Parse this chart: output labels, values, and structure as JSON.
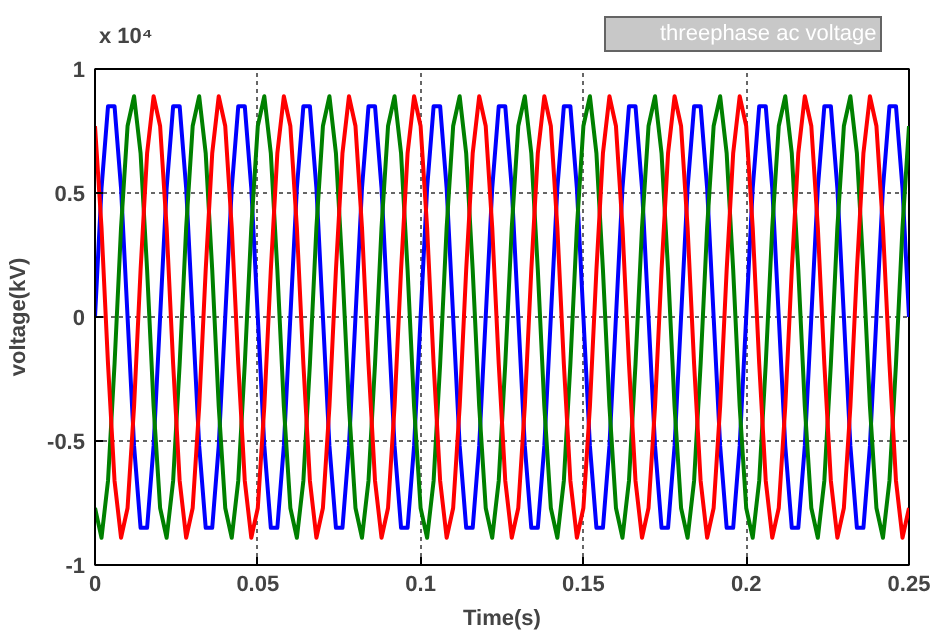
{
  "chart_data": {
    "type": "line",
    "xlabel": "Time(s)",
    "ylabel": "voltage(kV)",
    "annotations": [
      "x 10⁴"
    ],
    "x": [
      0,
      0.002,
      0.004,
      0.006,
      0.008,
      0.01,
      0.012,
      0.014,
      0.016,
      0.018,
      0.02,
      0.022,
      0.024,
      0.026,
      0.028,
      0.03,
      0.032,
      0.034,
      0.036,
      0.038,
      0.04,
      0.042,
      0.044,
      0.046,
      0.048,
      0.05,
      0.052,
      0.054,
      0.056,
      0.058,
      0.06,
      0.062,
      0.064,
      0.066,
      0.068,
      0.07,
      0.072,
      0.074,
      0.076,
      0.078,
      0.08,
      0.082,
      0.084,
      0.086,
      0.088,
      0.09,
      0.092,
      0.094,
      0.096,
      0.098,
      0.1,
      0.102,
      0.104,
      0.106,
      0.108,
      0.11,
      0.112,
      0.114,
      0.116,
      0.118,
      0.12,
      0.122,
      0.124,
      0.126,
      0.128,
      0.13,
      0.132,
      0.134,
      0.136,
      0.138,
      0.14,
      0.142,
      0.144,
      0.146,
      0.148,
      0.15,
      0.152,
      0.154,
      0.156,
      0.158,
      0.16,
      0.162,
      0.164,
      0.166,
      0.168,
      0.17,
      0.172,
      0.174,
      0.176,
      0.178,
      0.18,
      0.182,
      0.184,
      0.186,
      0.188,
      0.19,
      0.192,
      0.194,
      0.196,
      0.198,
      0.2,
      0.202,
      0.204,
      0.206,
      0.208,
      0.21,
      0.212,
      0.214,
      0.216,
      0.218,
      0.22,
      0.222,
      0.224,
      0.226,
      0.228,
      0.23,
      0.232,
      0.234,
      0.236,
      0.238,
      0.24,
      0.242,
      0.244,
      0.246,
      0.248,
      0.25
    ],
    "series": [
      {
        "color": "#0000ff",
        "values": [
          0,
          0.52,
          0.85,
          0.85,
          0.52,
          0,
          -0.52,
          -0.85,
          -0.85,
          -0.52,
          0,
          0.52,
          0.85,
          0.85,
          0.52,
          0,
          -0.52,
          -0.85,
          -0.85,
          -0.52,
          0,
          0.52,
          0.85,
          0.85,
          0.52,
          0,
          -0.52,
          -0.85,
          -0.85,
          -0.52,
          0,
          0.52,
          0.85,
          0.85,
          0.52,
          0,
          -0.52,
          -0.85,
          -0.85,
          -0.52,
          0,
          0.52,
          0.85,
          0.85,
          0.52,
          0,
          -0.52,
          -0.85,
          -0.85,
          -0.52,
          0,
          0.52,
          0.85,
          0.85,
          0.52,
          0,
          -0.52,
          -0.85,
          -0.85,
          -0.52,
          0,
          0.52,
          0.85,
          0.85,
          0.52,
          0,
          -0.52,
          -0.85,
          -0.85,
          -0.52,
          0,
          0.52,
          0.85,
          0.85,
          0.52,
          0,
          -0.52,
          -0.85,
          -0.85,
          -0.52,
          0,
          0.52,
          0.85,
          0.85,
          0.52,
          0,
          -0.52,
          -0.85,
          -0.85,
          -0.52,
          0,
          0.52,
          0.85,
          0.85,
          0.52,
          0,
          -0.52,
          -0.85,
          -0.85,
          -0.52,
          0,
          0.52,
          0.85,
          0.85,
          0.52,
          0,
          -0.52,
          -0.85,
          -0.85,
          -0.52,
          0,
          0.52,
          0.85,
          0.85,
          0.52,
          0,
          -0.52,
          -0.85,
          -0.85,
          -0.52,
          0,
          0.52,
          0.85,
          0.85,
          0.52,
          0
        ]
      },
      {
        "color": "#008000",
        "values": [
          -0.77,
          -0.89,
          -0.66,
          -0.19,
          0.36,
          0.77,
          0.89,
          0.66,
          0.19,
          -0.36,
          -0.77,
          -0.89,
          -0.66,
          -0.19,
          0.36,
          0.77,
          0.89,
          0.66,
          0.19,
          -0.36,
          -0.77,
          -0.89,
          -0.66,
          -0.19,
          0.36,
          0.77,
          0.89,
          0.66,
          0.19,
          -0.36,
          -0.77,
          -0.89,
          -0.66,
          -0.19,
          0.36,
          0.77,
          0.89,
          0.66,
          0.19,
          -0.36,
          -0.77,
          -0.89,
          -0.66,
          -0.19,
          0.36,
          0.77,
          0.89,
          0.66,
          0.19,
          -0.36,
          -0.77,
          -0.89,
          -0.66,
          -0.19,
          0.36,
          0.77,
          0.89,
          0.66,
          0.19,
          -0.36,
          -0.77,
          -0.89,
          -0.66,
          -0.19,
          0.36,
          0.77,
          0.89,
          0.66,
          0.19,
          -0.36,
          -0.77,
          -0.89,
          -0.66,
          -0.19,
          0.36,
          0.77,
          0.89,
          0.66,
          0.19,
          -0.36,
          -0.77,
          -0.89,
          -0.66,
          -0.19,
          0.36,
          0.77,
          0.89,
          0.66,
          0.19,
          -0.36,
          -0.77,
          -0.89,
          -0.66,
          -0.19,
          0.36,
          0.77,
          0.89,
          0.66,
          0.19,
          -0.36,
          -0.77,
          -0.89,
          -0.66,
          -0.19,
          0.36,
          0.77,
          0.89,
          0.66,
          0.19,
          -0.36,
          -0.77,
          -0.89,
          -0.66,
          -0.19,
          0.36,
          0.77,
          0.89,
          0.66,
          0.19,
          -0.36,
          -0.77,
          -0.89,
          -0.66,
          -0.19,
          0.36,
          0.77
        ]
      },
      {
        "name": "threephase ac voltage",
        "color": "#ff0000",
        "values": [
          0.77,
          0.36,
          -0.19,
          -0.66,
          -0.89,
          -0.77,
          -0.36,
          0.19,
          0.66,
          0.89,
          0.77,
          0.36,
          -0.19,
          -0.66,
          -0.89,
          -0.77,
          -0.36,
          0.19,
          0.66,
          0.89,
          0.77,
          0.36,
          -0.19,
          -0.66,
          -0.89,
          -0.77,
          -0.36,
          0.19,
          0.66,
          0.89,
          0.77,
          0.36,
          -0.19,
          -0.66,
          -0.89,
          -0.77,
          -0.36,
          0.19,
          0.66,
          0.89,
          0.77,
          0.36,
          -0.19,
          -0.66,
          -0.89,
          -0.77,
          -0.36,
          0.19,
          0.66,
          0.89,
          0.77,
          0.36,
          -0.19,
          -0.66,
          -0.89,
          -0.77,
          -0.36,
          0.19,
          0.66,
          0.89,
          0.77,
          0.36,
          -0.19,
          -0.66,
          -0.89,
          -0.77,
          -0.36,
          0.19,
          0.66,
          0.89,
          0.77,
          0.36,
          -0.19,
          -0.66,
          -0.89,
          -0.77,
          -0.36,
          0.19,
          0.66,
          0.89,
          0.77,
          0.36,
          -0.19,
          -0.66,
          -0.89,
          -0.77,
          -0.36,
          0.19,
          0.66,
          0.89,
          0.77,
          0.36,
          -0.19,
          -0.66,
          -0.89,
          -0.77,
          -0.36,
          0.19,
          0.66,
          0.89,
          0.77,
          0.36,
          -0.19,
          -0.66,
          -0.89,
          -0.77,
          -0.36,
          0.19,
          0.66,
          0.89,
          0.77,
          0.36,
          -0.19,
          -0.66,
          -0.89,
          -0.77,
          -0.36,
          0.19,
          0.66,
          0.89,
          0.77,
          0.36,
          -0.19,
          -0.66,
          -0.89,
          -0.77
        ]
      }
    ],
    "xlim": [
      0,
      0.25
    ],
    "xticks": [
      0,
      0.05,
      0.1,
      0.15,
      0.2,
      0.25
    ],
    "ylim": [
      -1,
      1
    ],
    "yticks": [
      -1,
      -0.5,
      0,
      0.5,
      1
    ],
    "grid": true,
    "legend": "top right",
    "line_style": "solid"
  }
}
